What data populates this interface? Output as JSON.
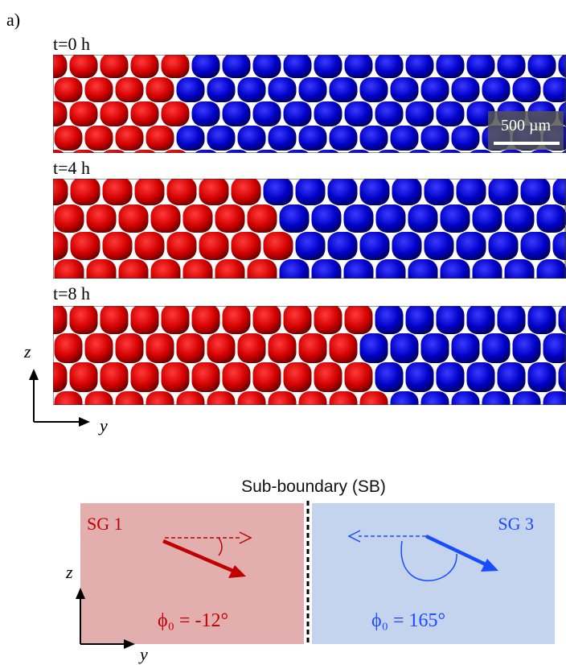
{
  "panel_label": "a)",
  "snapshots": [
    {
      "label": "t=0 h"
    },
    {
      "label": "t=4 h"
    },
    {
      "label": "t=8 h"
    }
  ],
  "scale_bar": "500 µm",
  "top_axes": {
    "z": "z",
    "y": "y"
  },
  "schematic": {
    "title": "Sub-boundary (SB)",
    "left": {
      "label": "SG 1",
      "angle": "ϕ₀ = -12°"
    },
    "right": {
      "label": "SG 3",
      "angle": "ϕ₀ = 165°"
    },
    "axes": {
      "z": "z",
      "y": "y"
    }
  }
}
